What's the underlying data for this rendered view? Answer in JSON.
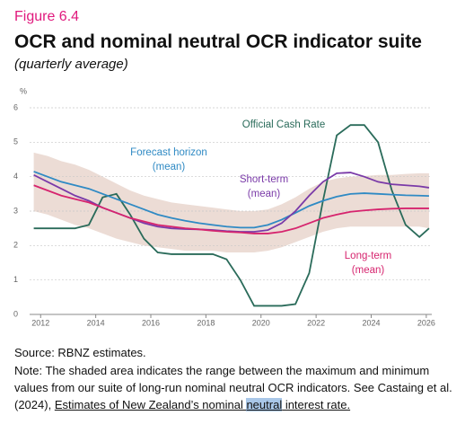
{
  "figure_label": "Figure 6.4",
  "chart_data": {
    "type": "line",
    "title": "OCR and nominal neutral OCR indicator suite",
    "subtitle": "(quarterly average)",
    "y_unit": "%",
    "x": [
      2011.75,
      2012.25,
      2012.75,
      2013.25,
      2013.75,
      2014.25,
      2014.75,
      2015.25,
      2015.75,
      2016.25,
      2016.75,
      2017.25,
      2017.75,
      2018.25,
      2018.75,
      2019.25,
      2019.75,
      2020.25,
      2020.75,
      2021.25,
      2021.75,
      2022.25,
      2022.75,
      2023.25,
      2023.75,
      2024.25,
      2024.75,
      2025.25,
      2025.75,
      2026.1
    ],
    "xlim": [
      2011.6,
      2026.2
    ],
    "xticks": [
      2012,
      2014,
      2016,
      2018,
      2020,
      2022,
      2024,
      2026
    ],
    "ylim": [
      0,
      6
    ],
    "yticks": [
      0,
      1,
      2,
      3,
      4,
      5,
      6
    ],
    "grid": true,
    "band": {
      "color": "#ecdcd5",
      "upper": [
        4.7,
        4.6,
        4.45,
        4.35,
        4.2,
        4.0,
        3.8,
        3.6,
        3.45,
        3.35,
        3.25,
        3.2,
        3.15,
        3.1,
        3.05,
        3.0,
        3.0,
        3.05,
        3.2,
        3.4,
        3.65,
        3.85,
        3.95,
        4.0,
        4.02,
        4.05,
        4.05,
        4.08,
        4.1,
        4.1
      ],
      "lower": [
        3.0,
        2.9,
        2.75,
        2.6,
        2.5,
        2.35,
        2.2,
        2.1,
        2.0,
        1.95,
        1.9,
        1.85,
        1.85,
        1.85,
        1.8,
        1.8,
        1.8,
        1.85,
        1.95,
        2.1,
        2.25,
        2.4,
        2.5,
        2.55,
        2.55,
        2.55,
        2.55,
        2.55,
        2.55,
        2.5
      ]
    },
    "series": [
      {
        "name_lines": [
          "Official Cash Rate"
        ],
        "color": "#2a6b5a",
        "values": [
          2.5,
          2.5,
          2.5,
          2.5,
          2.6,
          3.4,
          3.5,
          2.9,
          2.2,
          1.8,
          1.75,
          1.75,
          1.75,
          1.75,
          1.6,
          1.0,
          0.25,
          0.25,
          0.25,
          0.3,
          1.2,
          3.3,
          5.2,
          5.5,
          5.5,
          5.0,
          3.6,
          2.6,
          2.25,
          2.5
        ]
      },
      {
        "name_lines": [
          "Forecast horizon",
          "(mean)"
        ],
        "color": "#2f8ac4",
        "values": [
          4.15,
          4.0,
          3.85,
          3.75,
          3.65,
          3.5,
          3.35,
          3.2,
          3.05,
          2.9,
          2.8,
          2.72,
          2.65,
          2.6,
          2.55,
          2.52,
          2.52,
          2.6,
          2.75,
          2.95,
          3.15,
          3.3,
          3.42,
          3.5,
          3.52,
          3.5,
          3.48,
          3.46,
          3.45,
          3.44
        ]
      },
      {
        "name_lines": [
          "Short-term",
          "(mean)"
        ],
        "color": "#7a3aa8",
        "values": [
          4.05,
          3.85,
          3.65,
          3.45,
          3.3,
          3.1,
          2.95,
          2.8,
          2.65,
          2.55,
          2.5,
          2.48,
          2.47,
          2.45,
          2.42,
          2.4,
          2.4,
          2.45,
          2.65,
          3.0,
          3.45,
          3.85,
          4.1,
          4.12,
          4.0,
          3.85,
          3.78,
          3.75,
          3.72,
          3.68
        ]
      },
      {
        "name_lines": [
          "Long-term",
          "(mean)"
        ],
        "color": "#d6246e",
        "values": [
          3.75,
          3.6,
          3.45,
          3.35,
          3.25,
          3.1,
          2.95,
          2.8,
          2.7,
          2.6,
          2.55,
          2.5,
          2.47,
          2.43,
          2.4,
          2.38,
          2.35,
          2.35,
          2.4,
          2.5,
          2.65,
          2.8,
          2.9,
          2.98,
          3.02,
          3.05,
          3.07,
          3.08,
          3.08,
          3.08
        ]
      }
    ]
  },
  "source": "Source: RBNZ estimates.",
  "note": {
    "lines": [
      "Note: The shaded area indicates the range between the maximum and minimum",
      "values from our suite of long-run nominal neutral OCR indicators. See Castaing et al.",
      "(2024), "
    ],
    "link": [
      "Estimates of New Zealand’s nominal ",
      "neutral",
      " interest rate",
      "."
    ]
  }
}
